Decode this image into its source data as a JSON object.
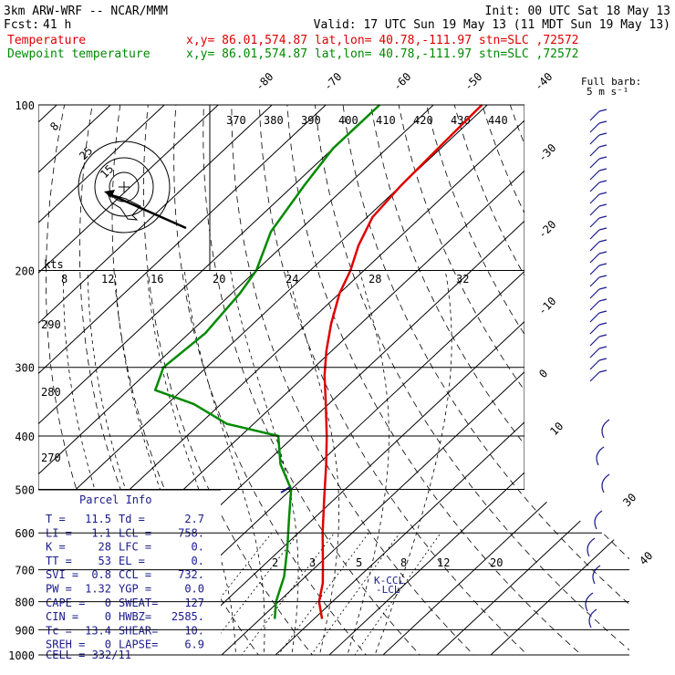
{
  "header": {
    "model": "3km ARW-WRF -- NCAR/MMM",
    "init": "Init: 00 UTC Sat 18 May 13",
    "fcst_label": "Fcst:",
    "fcst_value": "41 h",
    "valid": "Valid: 17 UTC Sun 19 May 13 (11 MDT Sun 19 May 13)",
    "temp_label": "Temperature",
    "temp_info": "x,y= 86.01,574.87   lat,lon= 40.78,-111.97   stn=SLC ,72572",
    "dew_label": "Dewpoint temperature",
    "dew_info": "x,y= 86.01,574.87   lat,lon= 40.78,-111.97   stn=SLC ,72572",
    "full_barb_1": "Full barb:",
    "full_barb_2": "5 m s⁻¹"
  },
  "colors": {
    "temperature": "#e00000",
    "dewpoint": "#008a00",
    "barbs": "#1a1a8c",
    "grid": "#000000"
  },
  "pressure_labels": [
    "100",
    "200",
    "300",
    "400",
    "500",
    "600",
    "700",
    "800",
    "900",
    "1000"
  ],
  "isotherm_labels_top": [
    "-80",
    "-70",
    "-60",
    "-50",
    "-40"
  ],
  "isotherm_labels_right": [
    "-30",
    "-20",
    "-10",
    "0",
    "10",
    "30",
    "40"
  ],
  "theta_labels": [
    "370",
    "380",
    "390",
    "400",
    "410",
    "420",
    "430",
    "440"
  ],
  "theta_left_labels": [
    "290",
    "280",
    "270"
  ],
  "mixing_ratio_labels": [
    "2",
    "3",
    "5",
    "8",
    "12",
    "20"
  ],
  "hodograph": {
    "kts_label": "kts",
    "speed_axis": [
      "8",
      "12",
      "16",
      "20",
      "24",
      "28",
      "32"
    ],
    "ring_labels": [
      "8",
      "25",
      "15"
    ]
  },
  "parcel": {
    "title": "Parcel Info",
    "rows": [
      [
        "T  =",
        "11.5",
        "Td =",
        "2.7"
      ],
      [
        "LI =",
        "1.1",
        "LCL =",
        "758."
      ],
      [
        "K  =",
        "28",
        "LFC =",
        "0."
      ],
      [
        "TT =",
        "53",
        "EL  =",
        "0."
      ],
      [
        "SVI =",
        "0.8",
        "CCL =",
        "732."
      ],
      [
        "PW =",
        "1.32",
        "YGP =",
        "0.0"
      ],
      [
        "CAPE =",
        "0",
        "SWEAT=",
        "127"
      ],
      [
        "CIN =",
        "0",
        "HWBZ=",
        "2585."
      ],
      [
        "Tc =",
        "13.4",
        "SHEAR=",
        "10."
      ],
      [
        "SREH =",
        "0",
        "LAPSE=",
        "6.9"
      ]
    ],
    "cell": "CELL = 332/11"
  },
  "ccl_label": "K-CCL",
  "lcl_label": "-LCL",
  "chart_data": {
    "type": "line",
    "title": "",
    "xlabel": "",
    "ylabel": "",
    "y_axis": "pressure (hPa), log scale, 100 at top",
    "x_axis": "skewed temperature (°C)",
    "series": [
      {
        "name": "Temperature",
        "pressure": [
          860,
          800,
          740,
          680,
          600,
          520,
          450,
          400,
          350,
          310,
          280,
          250,
          220,
          200,
          180,
          160,
          140,
          120,
          100
        ],
        "values": [
          11.5,
          7.5,
          4.5,
          0.5,
          -5.5,
          -12.0,
          -18.5,
          -24.0,
          -30.5,
          -36.5,
          -41.0,
          -45.5,
          -50.0,
          -52.5,
          -56.0,
          -59.0,
          -60.0,
          -60.5,
          -61.0
        ]
      },
      {
        "name": "Dewpoint temperature",
        "pressure": [
          860,
          800,
          720,
          640,
          560,
          500,
          450,
          400,
          380,
          350,
          330,
          300,
          260,
          220,
          200,
          170,
          140,
          120,
          100
        ],
        "values": [
          2.7,
          -0.5,
          -4.0,
          -9.0,
          -15.0,
          -20.0,
          -27.0,
          -33.0,
          -45.0,
          -55.0,
          -65.0,
          -68.0,
          -67.0,
          -68.5,
          -70.0,
          -75.0,
          -78.0,
          -80.0,
          -80.0
        ]
      }
    ]
  }
}
